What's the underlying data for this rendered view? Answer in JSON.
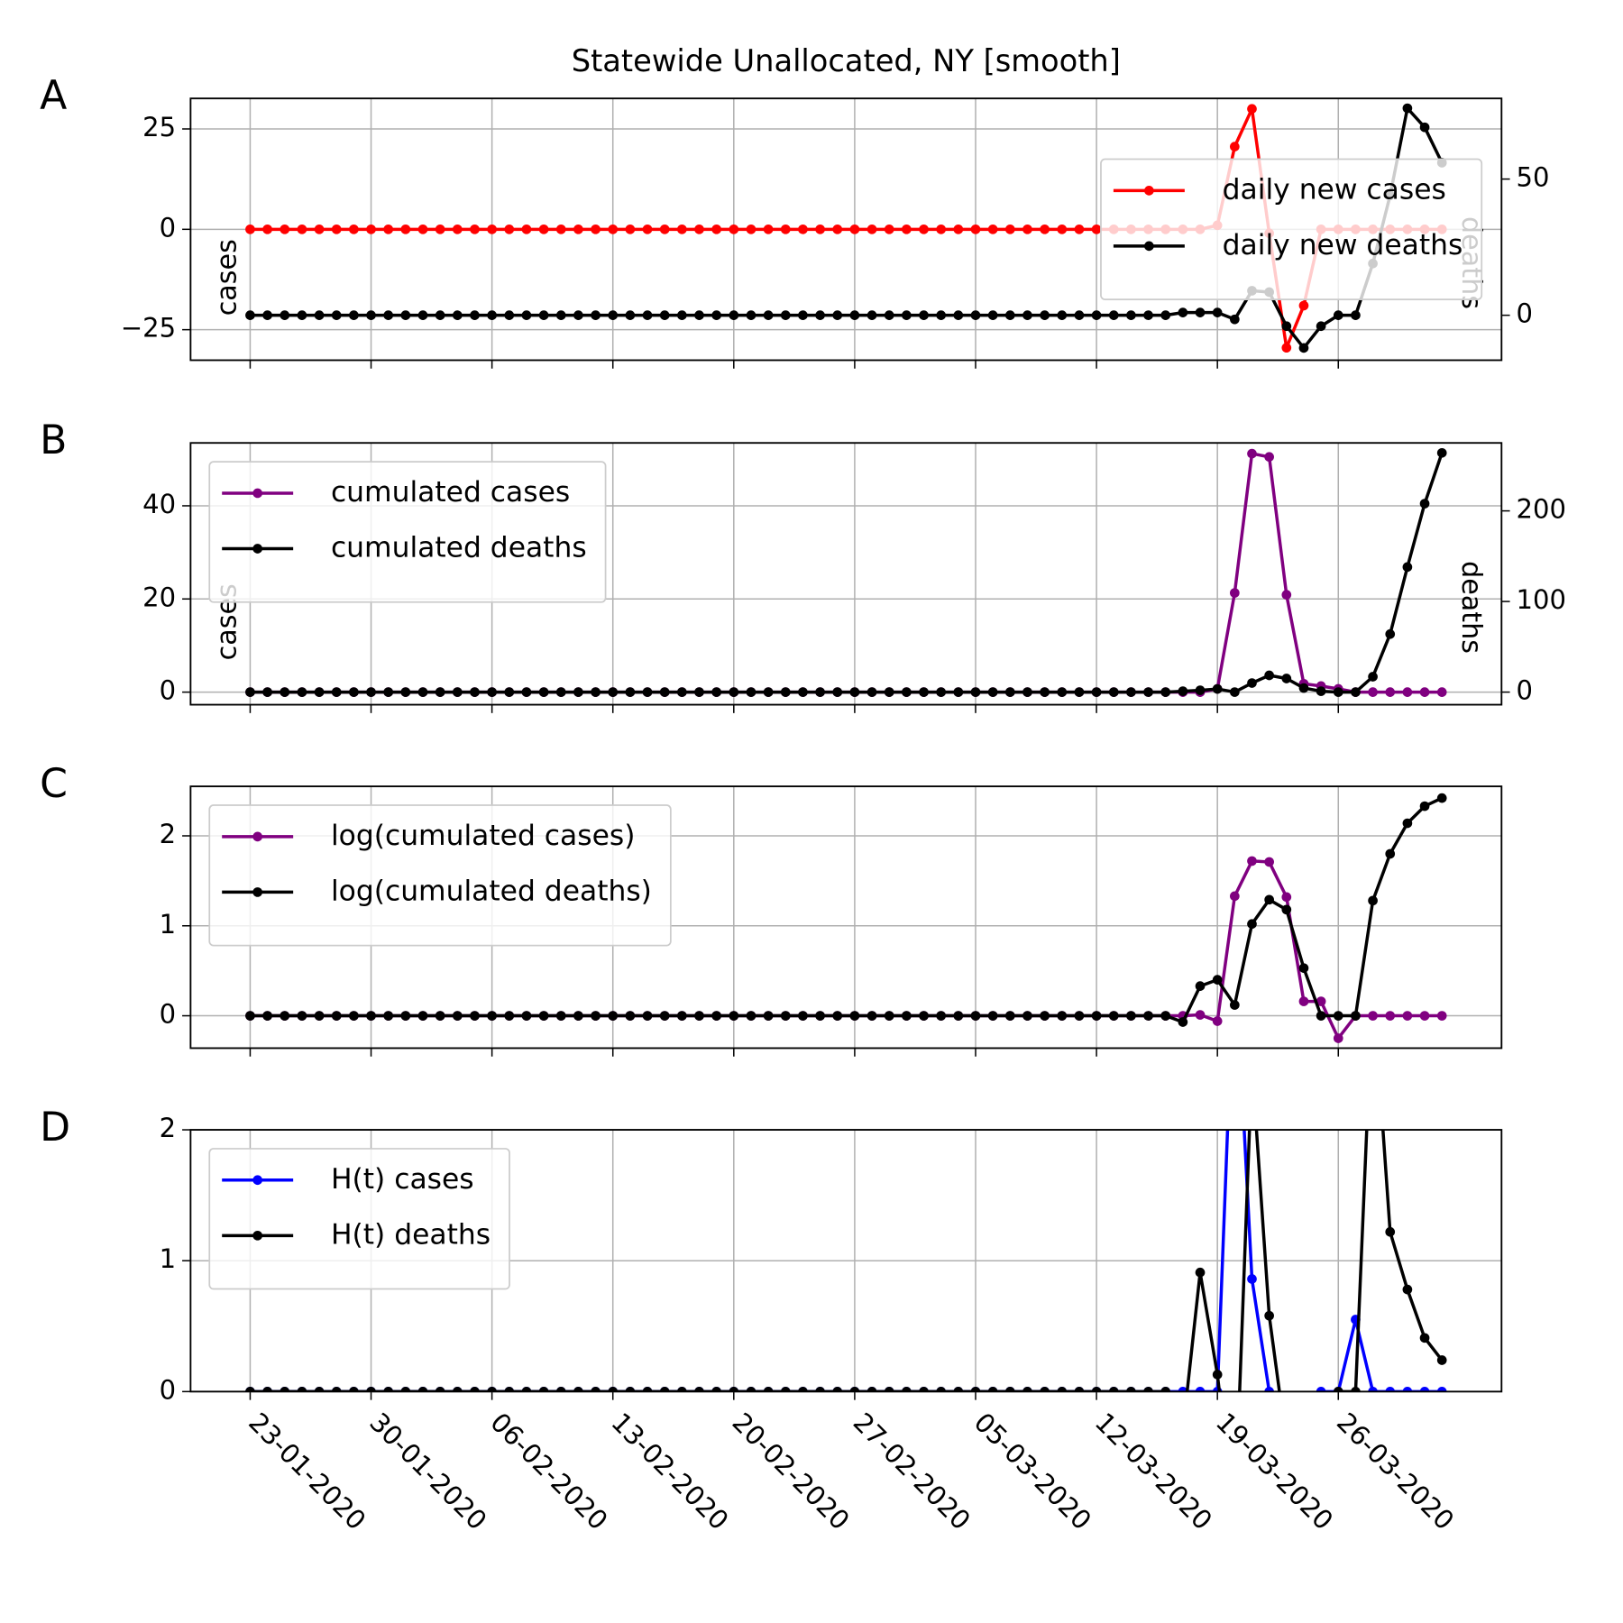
{
  "chart_data": [
    {
      "type": "line",
      "panel_label": "A",
      "title": "Statewide Unallocated, NY [smooth]",
      "ylabel": "cases",
      "y2label": "deaths",
      "x": [
        "23-01-2020",
        "24-01-2020",
        "25-01-2020",
        "26-01-2020",
        "27-01-2020",
        "28-01-2020",
        "29-01-2020",
        "30-01-2020",
        "31-01-2020",
        "01-02-2020",
        "02-02-2020",
        "03-02-2020",
        "04-02-2020",
        "05-02-2020",
        "06-02-2020",
        "07-02-2020",
        "08-02-2020",
        "09-02-2020",
        "10-02-2020",
        "11-02-2020",
        "12-02-2020",
        "13-02-2020",
        "14-02-2020",
        "15-02-2020",
        "16-02-2020",
        "17-02-2020",
        "18-02-2020",
        "19-02-2020",
        "20-02-2020",
        "21-02-2020",
        "22-02-2020",
        "23-02-2020",
        "24-02-2020",
        "25-02-2020",
        "26-02-2020",
        "27-02-2020",
        "28-02-2020",
        "29-02-2020",
        "01-03-2020",
        "02-03-2020",
        "03-03-2020",
        "04-03-2020",
        "05-03-2020",
        "06-03-2020",
        "07-03-2020",
        "08-03-2020",
        "09-03-2020",
        "10-03-2020",
        "11-03-2020",
        "12-03-2020",
        "13-03-2020",
        "14-03-2020",
        "15-03-2020",
        "16-03-2020",
        "17-03-2020",
        "18-03-2020",
        "19-03-2020",
        "20-03-2020",
        "21-03-2020",
        "22-03-2020",
        "23-03-2020",
        "24-03-2020",
        "25-03-2020",
        "26-03-2020",
        "27-03-2020",
        "28-03-2020",
        "29-03-2020",
        "30-03-2020",
        "31-03-2020",
        "01-04-2020"
      ],
      "xticks": [
        "23-01-2020",
        "30-01-2020",
        "06-02-2020",
        "13-02-2020",
        "20-02-2020",
        "27-02-2020",
        "05-03-2020",
        "12-03-2020",
        "19-03-2020",
        "26-03-2020"
      ],
      "ylim": [
        -32.6,
        32.6
      ],
      "yticks": [
        {
          "value": -25,
          "label": "−25"
        },
        0,
        25
      ],
      "y2lim": [
        -16.5,
        79.6
      ],
      "y2ticks": [
        0,
        50
      ],
      "grid": true,
      "legend": "center right",
      "series": [
        {
          "name": "daily new cases",
          "color": "#ff0000",
          "values": [
            0,
            0,
            0,
            0,
            0,
            0,
            0,
            0,
            0,
            0,
            0,
            0,
            0,
            0,
            0,
            0,
            0,
            0,
            0,
            0,
            0,
            0,
            0,
            0,
            0,
            0,
            0,
            0,
            0,
            0,
            0,
            0,
            0,
            0,
            0,
            0,
            0,
            0,
            0,
            0,
            0,
            0,
            0,
            0,
            0,
            0,
            0,
            0,
            0,
            0,
            0,
            0,
            0,
            0,
            0,
            0,
            1,
            20.6,
            30,
            -1,
            -29.5,
            -19,
            0,
            0,
            0,
            0,
            0,
            0,
            0,
            0
          ]
        },
        {
          "name": "daily new deaths",
          "color": "#000000",
          "axis": "y2",
          "values": [
            0,
            0,
            0,
            0,
            0,
            0,
            0,
            0,
            0,
            0,
            0,
            0,
            0,
            0,
            0,
            0,
            0,
            0,
            0,
            0,
            0,
            0,
            0,
            0,
            0,
            0,
            0,
            0,
            0,
            0,
            0,
            0,
            0,
            0,
            0,
            0,
            0,
            0,
            0,
            0,
            0,
            0,
            0,
            0,
            0,
            0,
            0,
            0,
            0,
            0,
            0,
            0,
            0,
            0,
            1,
            1,
            1,
            -1.5,
            9,
            8.5,
            -4,
            -12,
            -4,
            0,
            0,
            19,
            44,
            76,
            69,
            56
          ]
        }
      ]
    },
    {
      "type": "line",
      "panel_label": "B",
      "ylabel": "cases",
      "y2label": "deaths",
      "x": [
        "23-01-2020",
        "24-01-2020",
        "25-01-2020",
        "26-01-2020",
        "27-01-2020",
        "28-01-2020",
        "29-01-2020",
        "30-01-2020",
        "31-01-2020",
        "01-02-2020",
        "02-02-2020",
        "03-02-2020",
        "04-02-2020",
        "05-02-2020",
        "06-02-2020",
        "07-02-2020",
        "08-02-2020",
        "09-02-2020",
        "10-02-2020",
        "11-02-2020",
        "12-02-2020",
        "13-02-2020",
        "14-02-2020",
        "15-02-2020",
        "16-02-2020",
        "17-02-2020",
        "18-02-2020",
        "19-02-2020",
        "20-02-2020",
        "21-02-2020",
        "22-02-2020",
        "23-02-2020",
        "24-02-2020",
        "25-02-2020",
        "26-02-2020",
        "27-02-2020",
        "28-02-2020",
        "29-02-2020",
        "01-03-2020",
        "02-03-2020",
        "03-03-2020",
        "04-03-2020",
        "05-03-2020",
        "06-03-2020",
        "07-03-2020",
        "08-03-2020",
        "09-03-2020",
        "10-03-2020",
        "11-03-2020",
        "12-03-2020",
        "13-03-2020",
        "14-03-2020",
        "15-03-2020",
        "16-03-2020",
        "17-03-2020",
        "18-03-2020",
        "19-03-2020",
        "20-03-2020",
        "21-03-2020",
        "22-03-2020",
        "23-03-2020",
        "24-03-2020",
        "25-03-2020",
        "26-03-2020",
        "27-03-2020",
        "28-03-2020",
        "29-03-2020",
        "30-03-2020",
        "31-03-2020",
        "01-04-2020"
      ],
      "xticks": [
        "23-01-2020",
        "30-01-2020",
        "06-02-2020",
        "13-02-2020",
        "20-02-2020",
        "27-02-2020",
        "05-03-2020",
        "12-03-2020",
        "19-03-2020",
        "26-03-2020"
      ],
      "ylim": [
        -2.7,
        53.5
      ],
      "yticks": [
        0,
        20,
        40
      ],
      "y2lim": [
        -13.9,
        275
      ],
      "y2ticks": [
        0,
        100,
        200
      ],
      "grid": true,
      "legend": "upper left",
      "series": [
        {
          "name": "cumulated cases",
          "color": "#800080",
          "values": [
            0,
            0,
            0,
            0,
            0,
            0,
            0,
            0,
            0,
            0,
            0,
            0,
            0,
            0,
            0,
            0,
            0,
            0,
            0,
            0,
            0,
            0,
            0,
            0,
            0,
            0,
            0,
            0,
            0,
            0,
            0,
            0,
            0,
            0,
            0,
            0,
            0,
            0,
            0,
            0,
            0,
            0,
            0,
            0,
            0,
            0,
            0,
            0,
            0,
            0,
            0,
            0,
            0,
            0,
            0,
            0,
            0.7,
            21.3,
            51.2,
            50.5,
            20.9,
            1.8,
            1.3,
            0.7,
            0,
            0,
            0,
            0,
            0,
            0
          ]
        },
        {
          "name": "cumulated deaths",
          "color": "#000000",
          "axis": "y2",
          "values": [
            0,
            0,
            0,
            0,
            0,
            0,
            0,
            0,
            0,
            0,
            0,
            0,
            0,
            0,
            0,
            0,
            0,
            0,
            0,
            0,
            0,
            0,
            0,
            0,
            0,
            0,
            0,
            0,
            0,
            0,
            0,
            0,
            0,
            0,
            0,
            0,
            0,
            0,
            0,
            0,
            0,
            0,
            0,
            0,
            0,
            0,
            0,
            0,
            0,
            0,
            0,
            0,
            0,
            0,
            1,
            2,
            3.5,
            0,
            10,
            18.5,
            15,
            4.5,
            1,
            0,
            0,
            17,
            64,
            138,
            208,
            264
          ]
        }
      ]
    },
    {
      "type": "line",
      "panel_label": "C",
      "x": [
        "23-01-2020",
        "24-01-2020",
        "25-01-2020",
        "26-01-2020",
        "27-01-2020",
        "28-01-2020",
        "29-01-2020",
        "30-01-2020",
        "31-01-2020",
        "01-02-2020",
        "02-02-2020",
        "03-02-2020",
        "04-02-2020",
        "05-02-2020",
        "06-02-2020",
        "07-02-2020",
        "08-02-2020",
        "09-02-2020",
        "10-02-2020",
        "11-02-2020",
        "12-02-2020",
        "13-02-2020",
        "14-02-2020",
        "15-02-2020",
        "16-02-2020",
        "17-02-2020",
        "18-02-2020",
        "19-02-2020",
        "20-02-2020",
        "21-02-2020",
        "22-02-2020",
        "23-02-2020",
        "24-02-2020",
        "25-02-2020",
        "26-02-2020",
        "27-02-2020",
        "28-02-2020",
        "29-02-2020",
        "01-03-2020",
        "02-03-2020",
        "03-03-2020",
        "04-03-2020",
        "05-03-2020",
        "06-03-2020",
        "07-03-2020",
        "08-03-2020",
        "09-03-2020",
        "10-03-2020",
        "11-03-2020",
        "12-03-2020",
        "13-03-2020",
        "14-03-2020",
        "15-03-2020",
        "16-03-2020",
        "17-03-2020",
        "18-03-2020",
        "19-03-2020",
        "20-03-2020",
        "21-03-2020",
        "22-03-2020",
        "23-03-2020",
        "24-03-2020",
        "25-03-2020",
        "26-03-2020",
        "27-03-2020",
        "28-03-2020",
        "29-03-2020",
        "30-03-2020",
        "31-03-2020",
        "01-04-2020"
      ],
      "xticks": [
        "23-01-2020",
        "30-01-2020",
        "06-02-2020",
        "13-02-2020",
        "20-02-2020",
        "27-02-2020",
        "05-03-2020",
        "12-03-2020",
        "19-03-2020",
        "26-03-2020"
      ],
      "ylim": [
        -0.36,
        2.55
      ],
      "yticks": [
        0,
        1,
        2
      ],
      "grid": true,
      "legend": "upper left",
      "series": [
        {
          "name": "log(cumulated cases)",
          "color": "#800080",
          "values": [
            0,
            0,
            0,
            0,
            0,
            0,
            0,
            0,
            0,
            0,
            0,
            0,
            0,
            0,
            0,
            0,
            0,
            0,
            0,
            0,
            0,
            0,
            0,
            0,
            0,
            0,
            0,
            0,
            0,
            0,
            0,
            0,
            0,
            0,
            0,
            0,
            0,
            0,
            0,
            0,
            0,
            0,
            0,
            0,
            0,
            0,
            0,
            0,
            0,
            0,
            0,
            0,
            0,
            0,
            0,
            0.01,
            -0.06,
            1.33,
            1.72,
            1.71,
            1.32,
            0.16,
            0.16,
            -0.25,
            0,
            0,
            0,
            0,
            0,
            0
          ]
        },
        {
          "name": "log(cumulated deaths)",
          "color": "#000000",
          "values": [
            0,
            0,
            0,
            0,
            0,
            0,
            0,
            0,
            0,
            0,
            0,
            0,
            0,
            0,
            0,
            0,
            0,
            0,
            0,
            0,
            0,
            0,
            0,
            0,
            0,
            0,
            0,
            0,
            0,
            0,
            0,
            0,
            0,
            0,
            0,
            0,
            0,
            0,
            0,
            0,
            0,
            0,
            0,
            0,
            0,
            0,
            0,
            0,
            0,
            0,
            0,
            0,
            0,
            0,
            -0.07,
            0.33,
            0.4,
            0.12,
            1.02,
            1.29,
            1.18,
            0.53,
            0,
            0,
            0,
            1.28,
            1.8,
            2.14,
            2.33,
            2.42
          ]
        }
      ]
    },
    {
      "type": "line",
      "panel_label": "D",
      "x": [
        "23-01-2020",
        "24-01-2020",
        "25-01-2020",
        "26-01-2020",
        "27-01-2020",
        "28-01-2020",
        "29-01-2020",
        "30-01-2020",
        "31-01-2020",
        "01-02-2020",
        "02-02-2020",
        "03-02-2020",
        "04-02-2020",
        "05-02-2020",
        "06-02-2020",
        "07-02-2020",
        "08-02-2020",
        "09-02-2020",
        "10-02-2020",
        "11-02-2020",
        "12-02-2020",
        "13-02-2020",
        "14-02-2020",
        "15-02-2020",
        "16-02-2020",
        "17-02-2020",
        "18-02-2020",
        "19-02-2020",
        "20-02-2020",
        "21-02-2020",
        "22-02-2020",
        "23-02-2020",
        "24-02-2020",
        "25-02-2020",
        "26-02-2020",
        "27-02-2020",
        "28-02-2020",
        "29-02-2020",
        "01-03-2020",
        "02-03-2020",
        "03-03-2020",
        "04-03-2020",
        "05-03-2020",
        "06-03-2020",
        "07-03-2020",
        "08-03-2020",
        "09-03-2020",
        "10-03-2020",
        "11-03-2020",
        "12-03-2020",
        "13-03-2020",
        "14-03-2020",
        "15-03-2020",
        "16-03-2020",
        "17-03-2020",
        "18-03-2020",
        "19-03-2020",
        "20-03-2020",
        "21-03-2020",
        "22-03-2020",
        "23-03-2020",
        "24-03-2020",
        "25-03-2020",
        "26-03-2020",
        "27-03-2020",
        "28-03-2020",
        "29-03-2020",
        "30-03-2020",
        "31-03-2020",
        "01-04-2020"
      ],
      "xticks": [
        "23-01-2020",
        "30-01-2020",
        "06-02-2020",
        "13-02-2020",
        "20-02-2020",
        "27-02-2020",
        "05-03-2020",
        "12-03-2020",
        "19-03-2020",
        "26-03-2020"
      ],
      "ylim": [
        0,
        2
      ],
      "yticks": [
        0,
        1,
        2
      ],
      "grid": true,
      "legend": "upper left",
      "series": [
        {
          "name": "H(t) cases",
          "color": "#0000ff",
          "values": [
            0,
            0,
            0,
            0,
            0,
            0,
            0,
            0,
            0,
            0,
            0,
            0,
            0,
            0,
            0,
            0,
            0,
            0,
            0,
            0,
            0,
            0,
            0,
            0,
            0,
            0,
            0,
            0,
            0,
            0,
            0,
            0,
            0,
            0,
            0,
            0,
            0,
            0,
            0,
            0,
            0,
            0,
            0,
            0,
            0,
            0,
            0,
            0,
            0,
            0,
            0,
            0,
            0,
            0,
            0,
            0,
            0,
            3.4,
            0.86,
            0,
            null,
            null,
            0,
            0,
            0.55,
            0,
            0,
            0,
            0,
            0
          ]
        },
        {
          "name": "H(t) deaths",
          "color": "#000000",
          "values": [
            0,
            0,
            0,
            0,
            0,
            0,
            0,
            0,
            0,
            0,
            0,
            0,
            0,
            0,
            0,
            0,
            0,
            0,
            0,
            0,
            0,
            0,
            0,
            0,
            0,
            0,
            0,
            0,
            0,
            0,
            0,
            0,
            0,
            0,
            0,
            0,
            0,
            0,
            0,
            0,
            0,
            0,
            0,
            0,
            0,
            0,
            0,
            0,
            0,
            0,
            0,
            0,
            0,
            0,
            -0.3,
            0.91,
            0.13,
            -1,
            2.5,
            0.58,
            -0.4,
            null,
            null,
            0,
            0,
            3.1,
            1.22,
            0.78,
            0.41,
            0.24
          ]
        }
      ]
    }
  ]
}
